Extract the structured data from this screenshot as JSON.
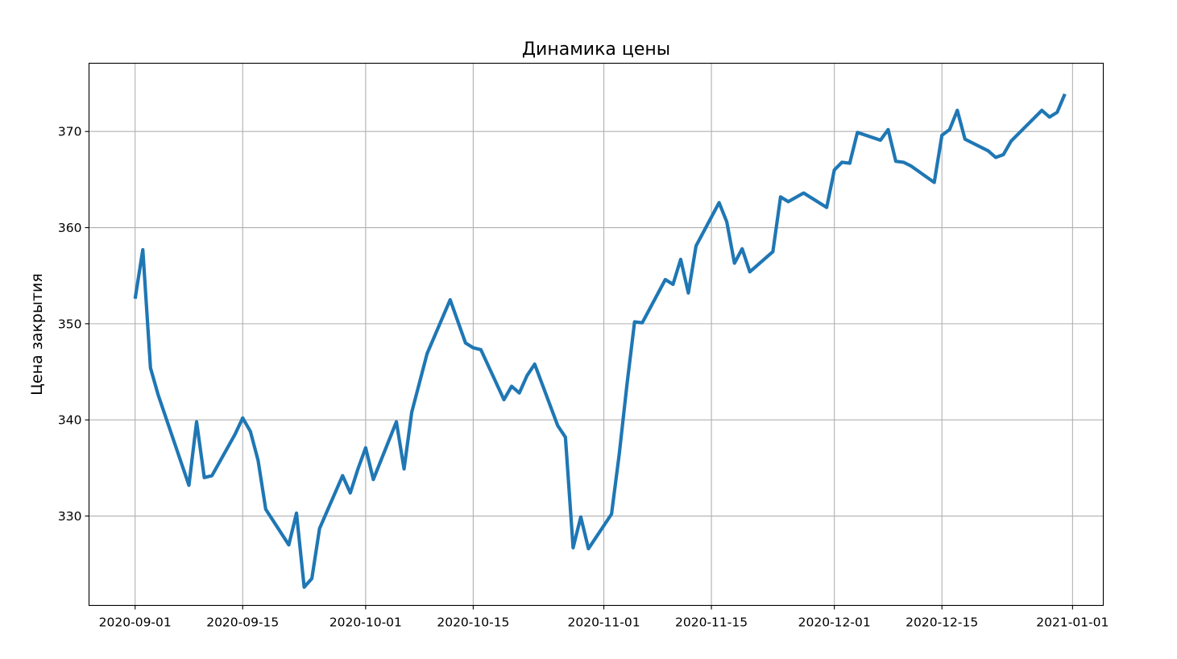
{
  "chart_data": {
    "type": "line",
    "title": "Динамика цены",
    "xlabel": "",
    "ylabel": "Цена закрытия",
    "grid": true,
    "legend": "none",
    "x_type": "date",
    "xlim": [
      "2020-08-26",
      "2021-01-05"
    ],
    "ylim": [
      320.7,
      377.1
    ],
    "x_ticks": [
      "2020-09-01",
      "2020-09-15",
      "2020-10-01",
      "2020-10-15",
      "2020-11-01",
      "2020-11-15",
      "2020-12-01",
      "2020-12-15",
      "2021-01-01"
    ],
    "y_ticks": [
      330,
      340,
      350,
      360,
      370
    ],
    "series": [
      {
        "color": "#1f77b4",
        "points": [
          [
            "2020-09-01",
            352.6
          ],
          [
            "2020-09-02",
            357.7
          ],
          [
            "2020-09-03",
            345.4
          ],
          [
            "2020-09-04",
            342.6
          ],
          [
            "2020-09-08",
            333.2
          ],
          [
            "2020-09-09",
            339.8
          ],
          [
            "2020-09-10",
            334.0
          ],
          [
            "2020-09-11",
            334.2
          ],
          [
            "2020-09-14",
            338.5
          ],
          [
            "2020-09-15",
            340.2
          ],
          [
            "2020-09-16",
            338.8
          ],
          [
            "2020-09-17",
            335.8
          ],
          [
            "2020-09-18",
            330.7
          ],
          [
            "2020-09-21",
            327.0
          ],
          [
            "2020-09-22",
            330.3
          ],
          [
            "2020-09-23",
            322.6
          ],
          [
            "2020-09-24",
            323.5
          ],
          [
            "2020-09-25",
            328.7
          ],
          [
            "2020-09-28",
            334.2
          ],
          [
            "2020-09-29",
            332.4
          ],
          [
            "2020-09-30",
            334.9
          ],
          [
            "2020-10-01",
            337.1
          ],
          [
            "2020-10-02",
            333.8
          ],
          [
            "2020-10-05",
            339.8
          ],
          [
            "2020-10-06",
            334.9
          ],
          [
            "2020-10-07",
            340.8
          ],
          [
            "2020-10-09",
            346.9
          ],
          [
            "2020-10-12",
            352.5
          ],
          [
            "2020-10-14",
            348.0
          ],
          [
            "2020-10-15",
            347.5
          ],
          [
            "2020-10-16",
            347.3
          ],
          [
            "2020-10-19",
            342.1
          ],
          [
            "2020-10-20",
            343.5
          ],
          [
            "2020-10-21",
            342.8
          ],
          [
            "2020-10-22",
            344.6
          ],
          [
            "2020-10-23",
            345.8
          ],
          [
            "2020-10-26",
            339.4
          ],
          [
            "2020-10-27",
            338.2
          ],
          [
            "2020-10-28",
            326.7
          ],
          [
            "2020-10-29",
            329.9
          ],
          [
            "2020-10-30",
            326.6
          ],
          [
            "2020-11-02",
            330.2
          ],
          [
            "2020-11-03",
            336.4
          ],
          [
            "2020-11-04",
            343.6
          ],
          [
            "2020-11-05",
            350.2
          ],
          [
            "2020-11-06",
            350.1
          ],
          [
            "2020-11-09",
            354.6
          ],
          [
            "2020-11-10",
            354.1
          ],
          [
            "2020-11-11",
            356.7
          ],
          [
            "2020-11-12",
            353.2
          ],
          [
            "2020-11-13",
            358.1
          ],
          [
            "2020-11-16",
            362.6
          ],
          [
            "2020-11-17",
            360.6
          ],
          [
            "2020-11-18",
            356.3
          ],
          [
            "2020-11-19",
            357.8
          ],
          [
            "2020-11-20",
            355.4
          ],
          [
            "2020-11-23",
            357.5
          ],
          [
            "2020-11-24",
            363.2
          ],
          [
            "2020-11-25",
            362.7
          ],
          [
            "2020-11-27",
            363.6
          ],
          [
            "2020-11-30",
            362.1
          ],
          [
            "2020-12-01",
            366.0
          ],
          [
            "2020-12-02",
            366.8
          ],
          [
            "2020-12-03",
            366.7
          ],
          [
            "2020-12-04",
            369.9
          ],
          [
            "2020-12-07",
            369.1
          ],
          [
            "2020-12-08",
            370.2
          ],
          [
            "2020-12-09",
            366.9
          ],
          [
            "2020-12-10",
            366.8
          ],
          [
            "2020-12-11",
            366.4
          ],
          [
            "2020-12-14",
            364.7
          ],
          [
            "2020-12-15",
            369.6
          ],
          [
            "2020-12-16",
            370.2
          ],
          [
            "2020-12-17",
            372.2
          ],
          [
            "2020-12-18",
            369.2
          ],
          [
            "2020-12-21",
            368.0
          ],
          [
            "2020-12-22",
            367.3
          ],
          [
            "2020-12-23",
            367.6
          ],
          [
            "2020-12-24",
            369.0
          ],
          [
            "2020-12-28",
            372.2
          ],
          [
            "2020-12-29",
            371.5
          ],
          [
            "2020-12-30",
            372.0
          ],
          [
            "2020-12-31",
            373.9
          ]
        ]
      }
    ]
  }
}
